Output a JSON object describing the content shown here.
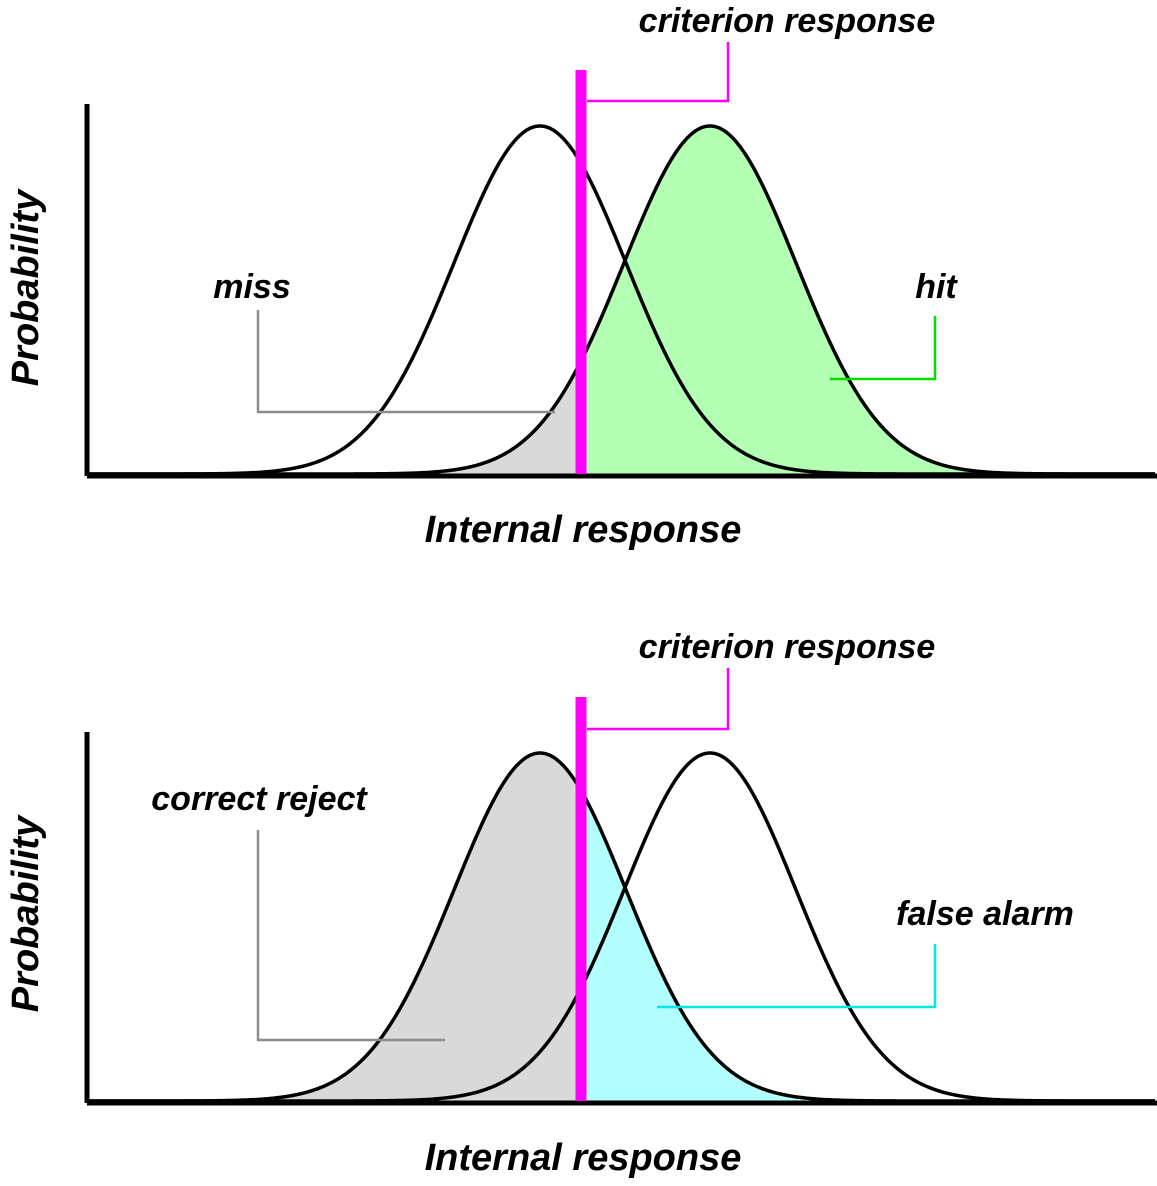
{
  "panels": [
    {
      "criterion_label": "criterion response",
      "y_axis_label": "Probability",
      "x_axis_label": "Internal response",
      "annotations": [
        {
          "text": "miss",
          "color": "#8c8c8c"
        },
        {
          "text": "hit",
          "color": "#00e000"
        }
      ],
      "shading": {
        "noise_left_of_criterion": "#d9d9d9",
        "signal_right_of_criterion": "#b3ffb3"
      }
    },
    {
      "criterion_label": "criterion response",
      "y_axis_label": "Probability",
      "x_axis_label": "Internal response",
      "annotations": [
        {
          "text": "correct reject",
          "color": "#8c8c8c"
        },
        {
          "text": "false alarm",
          "color": "#00e8e8"
        }
      ],
      "shading": {
        "noise_left_of_criterion": "#d9d9d9",
        "signal_right_of_criterion": "#b3ffff"
      }
    }
  ],
  "colors": {
    "criterion": "#ff00ff",
    "axis": "#000000",
    "curve": "#000000"
  }
}
